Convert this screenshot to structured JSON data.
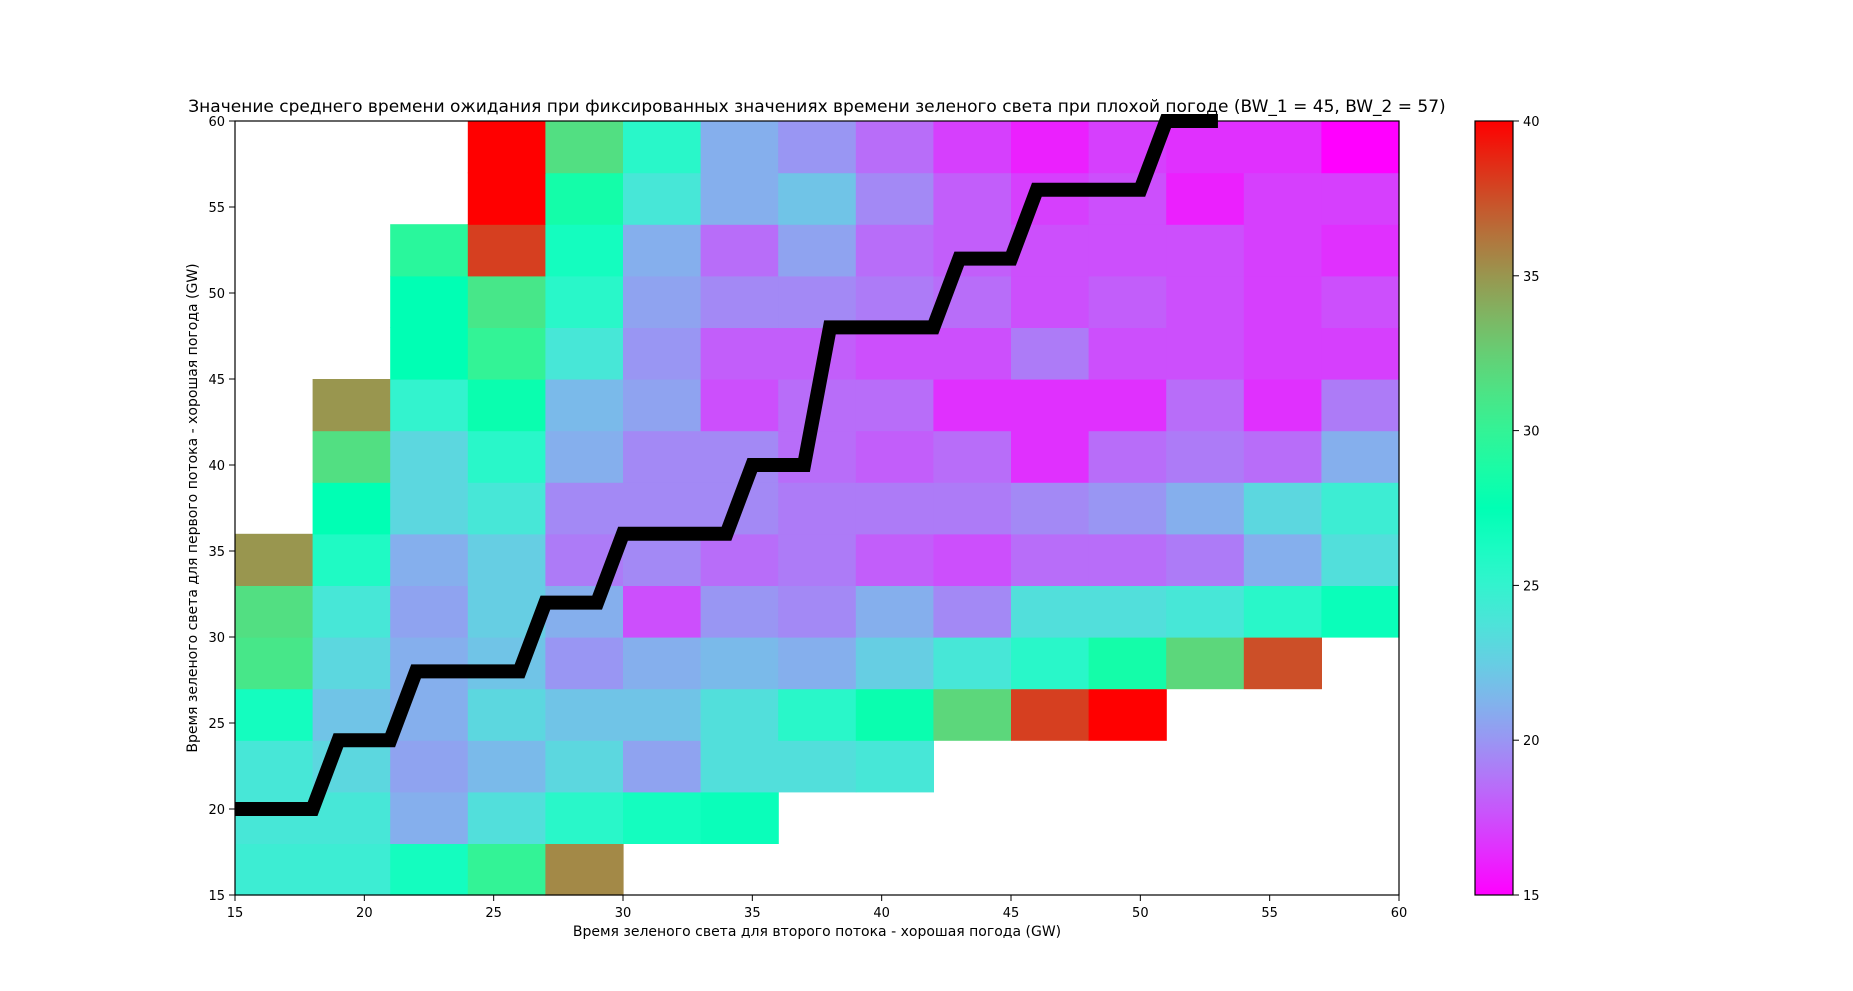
{
  "chart_data": {
    "type": "heatmap",
    "title": "Значение среднего времени ожидания при фиксированных значениях времени зеленого света при плохой погоде (BW_1 = 45, BW_2 = 57)",
    "xlabel": "Время зеленого света для второго потока - хорошая погода (GW)",
    "ylabel": "Время зеленого света для первого потока - хорошая погода (GW)",
    "xlim": [
      15,
      60
    ],
    "ylim": [
      15,
      60
    ],
    "x_ticks": [
      "15",
      "20",
      "25",
      "30",
      "35",
      "40",
      "45",
      "50",
      "55",
      "60"
    ],
    "y_ticks": [
      "15",
      "20",
      "25",
      "30",
      "35",
      "40",
      "45",
      "50",
      "55",
      "60"
    ],
    "colorbar": {
      "colormap": "rainbow",
      "vmin": 15,
      "vmax": 40,
      "ticks": [
        "15",
        "20",
        "25",
        "30",
        "35",
        "40"
      ],
      "position": "right"
    },
    "grid": false,
    "cells": [
      [
        15,
        15,
        24.5
      ],
      [
        18,
        15,
        24.5
      ],
      [
        21,
        15,
        26.5
      ],
      [
        24,
        15,
        30
      ],
      [
        27,
        15,
        35.5
      ],
      [
        15,
        18,
        24
      ],
      [
        18,
        18,
        24
      ],
      [
        21,
        18,
        21
      ],
      [
        24,
        18,
        23.5
      ],
      [
        27,
        18,
        25.5
      ],
      [
        30,
        18,
        26.5
      ],
      [
        33,
        18,
        27
      ],
      [
        15,
        21,
        24
      ],
      [
        18,
        21,
        23
      ],
      [
        21,
        21,
        20.5
      ],
      [
        24,
        21,
        21.5
      ],
      [
        27,
        21,
        23
      ],
      [
        30,
        21,
        20.5
      ],
      [
        33,
        21,
        23.5
      ],
      [
        36,
        21,
        23.5
      ],
      [
        39,
        21,
        24
      ],
      [
        15,
        24,
        26.5
      ],
      [
        18,
        24,
        22
      ],
      [
        21,
        24,
        21
      ],
      [
        24,
        24,
        23
      ],
      [
        27,
        24,
        22
      ],
      [
        30,
        24,
        22
      ],
      [
        33,
        24,
        23.5
      ],
      [
        36,
        24,
        25.5
      ],
      [
        39,
        24,
        28
      ],
      [
        42,
        24,
        32
      ],
      [
        45,
        24,
        38
      ],
      [
        48,
        24,
        40
      ],
      [
        15,
        27,
        31
      ],
      [
        18,
        27,
        23
      ],
      [
        21,
        27,
        21
      ],
      [
        24,
        27,
        22
      ],
      [
        27,
        27,
        20
      ],
      [
        30,
        27,
        21
      ],
      [
        33,
        27,
        21.5
      ],
      [
        36,
        27,
        21
      ],
      [
        39,
        27,
        22.5
      ],
      [
        42,
        27,
        24
      ],
      [
        45,
        27,
        25.5
      ],
      [
        48,
        27,
        28.5
      ],
      [
        51,
        27,
        32
      ],
      [
        54,
        27,
        37.5
      ],
      [
        15,
        30,
        31.5
      ],
      [
        18,
        30,
        24
      ],
      [
        21,
        30,
        20.5
      ],
      [
        24,
        30,
        22.5
      ],
      [
        27,
        30,
        21
      ],
      [
        30,
        30,
        17.5
      ],
      [
        33,
        30,
        20
      ],
      [
        36,
        30,
        19.5
      ],
      [
        39,
        30,
        21
      ],
      [
        42,
        30,
        19.5
      ],
      [
        45,
        30,
        23.5
      ],
      [
        48,
        30,
        23.5
      ],
      [
        51,
        30,
        24
      ],
      [
        54,
        30,
        25.5
      ],
      [
        57,
        30,
        27
      ],
      [
        15,
        33,
        35
      ],
      [
        18,
        33,
        26
      ],
      [
        21,
        33,
        21
      ],
      [
        24,
        33,
        22.5
      ],
      [
        27,
        33,
        19
      ],
      [
        30,
        33,
        19.5
      ],
      [
        33,
        33,
        18.5
      ],
      [
        36,
        33,
        19
      ],
      [
        39,
        33,
        18
      ],
      [
        42,
        33,
        17.5
      ],
      [
        45,
        33,
        18.5
      ],
      [
        48,
        33,
        18.5
      ],
      [
        51,
        33,
        19
      ],
      [
        54,
        33,
        21
      ],
      [
        57,
        33,
        23.5
      ],
      [
        15,
        36,
        null
      ],
      [
        18,
        36,
        27.5
      ],
      [
        21,
        36,
        23
      ],
      [
        24,
        36,
        24
      ],
      [
        27,
        36,
        19.5
      ],
      [
        30,
        36,
        19.5
      ],
      [
        33,
        36,
        19.5
      ],
      [
        36,
        36,
        19
      ],
      [
        39,
        36,
        19
      ],
      [
        42,
        36,
        19
      ],
      [
        45,
        36,
        19.5
      ],
      [
        48,
        36,
        20
      ],
      [
        51,
        36,
        21
      ],
      [
        54,
        36,
        23
      ],
      [
        57,
        36,
        24.5
      ],
      [
        18,
        39,
        31.5
      ],
      [
        21,
        39,
        23
      ],
      [
        24,
        39,
        25.5
      ],
      [
        27,
        39,
        21
      ],
      [
        30,
        39,
        19.5
      ],
      [
        33,
        39,
        19.5
      ],
      [
        36,
        39,
        18.5
      ],
      [
        39,
        39,
        18
      ],
      [
        42,
        39,
        18.5
      ],
      [
        45,
        39,
        16.5
      ],
      [
        48,
        39,
        18.5
      ],
      [
        51,
        39,
        19
      ],
      [
        54,
        39,
        18.5
      ],
      [
        57,
        39,
        21
      ],
      [
        18,
        42,
        35
      ],
      [
        21,
        42,
        25
      ],
      [
        24,
        42,
        28
      ],
      [
        27,
        42,
        21.5
      ],
      [
        30,
        42,
        20.5
      ],
      [
        33,
        42,
        17.5
      ],
      [
        36,
        42,
        18.5
      ],
      [
        39,
        42,
        18.5
      ],
      [
        42,
        42,
        16.5
      ],
      [
        45,
        42,
        16.5
      ],
      [
        48,
        42,
        16.5
      ],
      [
        51,
        42,
        18.5
      ],
      [
        54,
        42,
        16.5
      ],
      [
        57,
        42,
        19
      ],
      [
        21,
        45,
        27.5
      ],
      [
        24,
        45,
        30
      ],
      [
        27,
        45,
        24
      ],
      [
        30,
        45,
        20
      ],
      [
        33,
        45,
        18
      ],
      [
        36,
        45,
        18
      ],
      [
        39,
        45,
        17.5
      ],
      [
        42,
        45,
        17.5
      ],
      [
        45,
        45,
        19
      ],
      [
        48,
        45,
        17.5
      ],
      [
        51,
        45,
        17.5
      ],
      [
        54,
        45,
        17
      ],
      [
        57,
        45,
        17
      ],
      [
        21,
        48,
        27.5
      ],
      [
        24,
        48,
        31
      ],
      [
        27,
        48,
        25.5
      ],
      [
        30,
        48,
        20.5
      ],
      [
        33,
        48,
        19.5
      ],
      [
        36,
        48,
        19.5
      ],
      [
        39,
        48,
        19
      ],
      [
        42,
        48,
        18.5
      ],
      [
        45,
        48,
        17.5
      ],
      [
        48,
        48,
        18
      ],
      [
        51,
        48,
        17.5
      ],
      [
        54,
        48,
        17
      ],
      [
        57,
        48,
        17.5
      ],
      [
        21,
        51,
        29.5
      ],
      [
        24,
        51,
        38
      ],
      [
        27,
        51,
        26.5
      ],
      [
        30,
        51,
        21
      ],
      [
        33,
        51,
        18.5
      ],
      [
        36,
        51,
        20.5
      ],
      [
        39,
        51,
        18.5
      ],
      [
        42,
        51,
        18
      ],
      [
        45,
        51,
        17.5
      ],
      [
        48,
        51,
        17.5
      ],
      [
        51,
        51,
        17.5
      ],
      [
        54,
        51,
        17
      ],
      [
        57,
        51,
        16.5
      ],
      [
        24,
        54,
        40
      ],
      [
        27,
        54,
        28.5
      ],
      [
        30,
        54,
        24
      ],
      [
        33,
        54,
        21
      ],
      [
        36,
        54,
        22
      ],
      [
        39,
        54,
        19.5
      ],
      [
        42,
        54,
        18
      ],
      [
        45,
        54,
        17
      ],
      [
        48,
        54,
        17.5
      ],
      [
        51,
        54,
        16
      ],
      [
        54,
        54,
        17
      ],
      [
        57,
        54,
        17
      ],
      [
        24,
        57,
        40
      ],
      [
        27,
        57,
        31.5
      ],
      [
        30,
        57,
        25.5
      ],
      [
        33,
        57,
        21
      ],
      [
        36,
        57,
        20
      ],
      [
        39,
        57,
        18.5
      ],
      [
        42,
        57,
        17
      ],
      [
        45,
        57,
        16
      ],
      [
        48,
        57,
        17
      ],
      [
        51,
        57,
        16.5
      ],
      [
        54,
        57,
        16.5
      ],
      [
        57,
        57,
        15
      ]
    ],
    "cell_size": 3,
    "optimal_line": {
      "color": "#000000",
      "points": [
        [
          15,
          20
        ],
        [
          18,
          20
        ],
        [
          19,
          24
        ],
        [
          21,
          24
        ],
        [
          22,
          28
        ],
        [
          26,
          28
        ],
        [
          27,
          32
        ],
        [
          29,
          32
        ],
        [
          30,
          36
        ],
        [
          34,
          36
        ],
        [
          35,
          40
        ],
        [
          37,
          40
        ],
        [
          38,
          48
        ],
        [
          42,
          48
        ],
        [
          43,
          52
        ],
        [
          45,
          52
        ],
        [
          46,
          56
        ],
        [
          50,
          56
        ],
        [
          51,
          60
        ],
        [
          53,
          60
        ]
      ]
    }
  }
}
